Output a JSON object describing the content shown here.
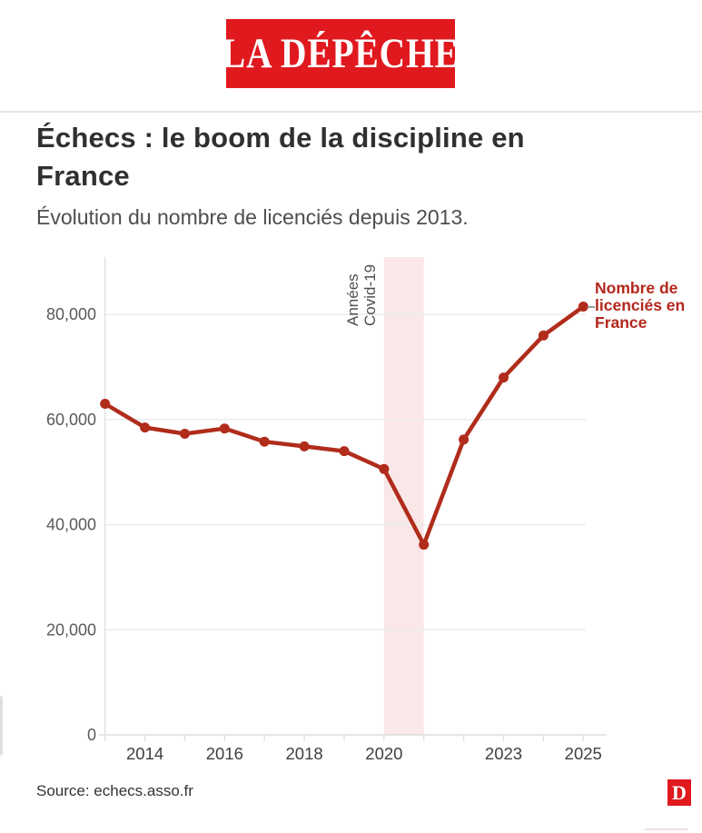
{
  "header": {
    "brand": "LA DÉPÊCHE"
  },
  "article": {
    "title": "Échecs : le boom de la discipline en France",
    "subtitle": "Évolution du nombre de licenciés depuis 2013."
  },
  "chart_data": {
    "type": "line",
    "title": "Échecs : le boom de la discipline en France",
    "subtitle": "Évolution du nombre de licenciés depuis 2013.",
    "x": [
      2013,
      2014,
      2015,
      2016,
      2017,
      2018,
      2019,
      2020,
      2021,
      2022,
      2023,
      2024,
      2025
    ],
    "series": [
      {
        "name": "Nombre de licenciés en France",
        "values": [
          63000,
          58500,
          57300,
          58300,
          55800,
          54900,
          54000,
          50600,
          36200,
          56200,
          68000,
          76000,
          81500
        ]
      }
    ],
    "ylim": [
      0,
      90000
    ],
    "yticks": [
      0,
      20000,
      40000,
      60000,
      80000
    ],
    "ytick_labels": [
      "0",
      "20,000",
      "40,000",
      "60,000",
      "80,000"
    ],
    "xtick_labeled_years": [
      2014,
      2016,
      2018,
      2020,
      2023,
      2025
    ],
    "grid": "horizontal",
    "legend_position": "end-of-line",
    "annotation_band": {
      "from": 2020,
      "to": 2021,
      "label_line1": "Années",
      "label_line2": "Covid-19",
      "color": "#fae7e7"
    },
    "series_label": "Nombre de licenciés en France",
    "line_color": "#b02c1b",
    "series_label_color": "#b3271b"
  },
  "footer": {
    "source": "Source: echecs.asso.fr",
    "logo_letter": "D"
  },
  "colors": {
    "brand_red": "#e0191f",
    "line_red": "#b02c1b",
    "label_red": "#b3271b",
    "band_pink": "#fae7e7",
    "grid_gray": "#ececec",
    "axis_gray": "#dedede",
    "ytick_text": "#5a5a5a",
    "xtick_text": "#404040"
  }
}
